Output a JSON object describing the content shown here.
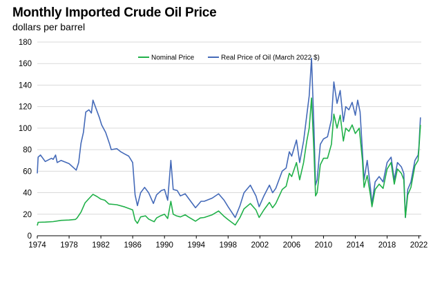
{
  "chart_data": {
    "type": "line",
    "title": "Monthly Imported Crude Oil Price",
    "subtitle": "dollars per barrel",
    "xlabel": "",
    "ylabel": "",
    "xlim": [
      1974,
      2022.3
    ],
    "ylim": [
      0,
      180
    ],
    "y_ticks": [
      0,
      20,
      40,
      60,
      80,
      100,
      120,
      140,
      160,
      180
    ],
    "x_ticks": [
      1974,
      1978,
      1982,
      1986,
      1990,
      1994,
      1998,
      2002,
      2006,
      2010,
      2014,
      2018,
      2022
    ],
    "grid": "horizontal",
    "legend_position": "top-center",
    "series": [
      {
        "name": "Nominal Price",
        "color": "#1fb048",
        "points": [
          [
            1974.0,
            9.5
          ],
          [
            1974.1,
            12.5
          ],
          [
            1975.0,
            12.7
          ],
          [
            1976.0,
            13.1
          ],
          [
            1977.0,
            14.3
          ],
          [
            1978.0,
            14.6
          ],
          [
            1978.8,
            15.2
          ],
          [
            1979.0,
            16.5
          ],
          [
            1979.5,
            22.0
          ],
          [
            1980.0,
            30.5
          ],
          [
            1980.5,
            34.5
          ],
          [
            1981.0,
            38.5
          ],
          [
            1981.5,
            36.5
          ],
          [
            1982.0,
            34.0
          ],
          [
            1982.5,
            33.0
          ],
          [
            1983.0,
            29.5
          ],
          [
            1984.0,
            28.8
          ],
          [
            1985.0,
            26.8
          ],
          [
            1986.0,
            24.0
          ],
          [
            1986.3,
            14.5
          ],
          [
            1986.6,
            11.5
          ],
          [
            1987.0,
            17.5
          ],
          [
            1987.6,
            18.5
          ],
          [
            1988.0,
            15.5
          ],
          [
            1988.7,
            13.0
          ],
          [
            1989.0,
            16.5
          ],
          [
            1989.5,
            18.5
          ],
          [
            1990.0,
            20.0
          ],
          [
            1990.4,
            16.0
          ],
          [
            1990.8,
            32.0
          ],
          [
            1991.1,
            20.0
          ],
          [
            1991.5,
            18.5
          ],
          [
            1992.0,
            17.5
          ],
          [
            1992.6,
            19.5
          ],
          [
            1993.0,
            17.5
          ],
          [
            1993.9,
            13.5
          ],
          [
            1994.5,
            16.5
          ],
          [
            1995.0,
            17.0
          ],
          [
            1996.0,
            19.5
          ],
          [
            1996.8,
            23.0
          ],
          [
            1997.5,
            18.0
          ],
          [
            1998.0,
            15.0
          ],
          [
            1998.9,
            10.0
          ],
          [
            1999.5,
            17.0
          ],
          [
            2000.0,
            25.0
          ],
          [
            2000.8,
            30.0
          ],
          [
            2001.5,
            24.0
          ],
          [
            2001.9,
            17.0
          ],
          [
            2002.5,
            24.0
          ],
          [
            2003.2,
            31.0
          ],
          [
            2003.6,
            26.0
          ],
          [
            2004.0,
            30.0
          ],
          [
            2004.8,
            43.0
          ],
          [
            2005.3,
            46.0
          ],
          [
            2005.7,
            58.0
          ],
          [
            2006.0,
            55.0
          ],
          [
            2006.6,
            68.0
          ],
          [
            2007.0,
            52.0
          ],
          [
            2007.5,
            68.0
          ],
          [
            2007.9,
            88.0
          ],
          [
            2008.2,
            100.0
          ],
          [
            2008.5,
            128.0
          ],
          [
            2008.8,
            78.0
          ],
          [
            2009.0,
            37.0
          ],
          [
            2009.2,
            40.0
          ],
          [
            2009.6,
            66.0
          ],
          [
            2010.0,
            72.0
          ],
          [
            2010.5,
            72.0
          ],
          [
            2011.0,
            85.0
          ],
          [
            2011.3,
            113.0
          ],
          [
            2011.7,
            100.0
          ],
          [
            2012.1,
            112.0
          ],
          [
            2012.5,
            88.0
          ],
          [
            2012.8,
            100.0
          ],
          [
            2013.2,
            97.0
          ],
          [
            2013.6,
            103.0
          ],
          [
            2014.0,
            95.0
          ],
          [
            2014.5,
            100.0
          ],
          [
            2014.9,
            70.0
          ],
          [
            2015.1,
            45.0
          ],
          [
            2015.5,
            56.0
          ],
          [
            2015.9,
            38.0
          ],
          [
            2016.1,
            27.0
          ],
          [
            2016.5,
            43.0
          ],
          [
            2017.0,
            48.0
          ],
          [
            2017.5,
            44.0
          ],
          [
            2018.0,
            62.0
          ],
          [
            2018.5,
            68.0
          ],
          [
            2018.9,
            48.0
          ],
          [
            2019.3,
            62.0
          ],
          [
            2019.8,
            58.0
          ],
          [
            2020.1,
            52.0
          ],
          [
            2020.3,
            17.0
          ],
          [
            2020.6,
            38.0
          ],
          [
            2021.0,
            45.0
          ],
          [
            2021.5,
            65.0
          ],
          [
            2021.9,
            70.0
          ],
          [
            2022.0,
            80.0
          ],
          [
            2022.2,
            103.0
          ]
        ]
      },
      {
        "name": "Real Price of Oil  (March 2022 $)",
        "color": "#4369b8",
        "points": [
          [
            1974.0,
            58.0
          ],
          [
            1974.1,
            73.0
          ],
          [
            1974.4,
            75.0
          ],
          [
            1975.0,
            69.0
          ],
          [
            1975.8,
            72.0
          ],
          [
            1976.0,
            71.0
          ],
          [
            1976.3,
            75.0
          ],
          [
            1976.5,
            68.0
          ],
          [
            1977.0,
            70.0
          ],
          [
            1978.0,
            67.0
          ],
          [
            1978.9,
            61.0
          ],
          [
            1979.2,
            68.0
          ],
          [
            1979.5,
            86.0
          ],
          [
            1979.8,
            96.0
          ],
          [
            1980.1,
            115.0
          ],
          [
            1980.5,
            117.0
          ],
          [
            1980.8,
            114.0
          ],
          [
            1981.0,
            126.0
          ],
          [
            1981.4,
            118.0
          ],
          [
            1981.8,
            110.0
          ],
          [
            1982.1,
            103.0
          ],
          [
            1982.6,
            96.0
          ],
          [
            1983.1,
            85.0
          ],
          [
            1983.3,
            80.0
          ],
          [
            1984.0,
            81.0
          ],
          [
            1984.5,
            78.0
          ],
          [
            1985.0,
            76.0
          ],
          [
            1985.5,
            74.0
          ],
          [
            1986.0,
            68.0
          ],
          [
            1986.3,
            38.0
          ],
          [
            1986.6,
            28.0
          ],
          [
            1987.0,
            40.0
          ],
          [
            1987.5,
            45.0
          ],
          [
            1988.0,
            40.0
          ],
          [
            1988.6,
            30.0
          ],
          [
            1989.0,
            38.0
          ],
          [
            1989.6,
            42.0
          ],
          [
            1990.0,
            43.0
          ],
          [
            1990.4,
            33.0
          ],
          [
            1990.8,
            70.0
          ],
          [
            1991.1,
            43.0
          ],
          [
            1991.6,
            42.0
          ],
          [
            1992.0,
            37.0
          ],
          [
            1992.6,
            39.0
          ],
          [
            1993.0,
            35.0
          ],
          [
            1993.9,
            26.0
          ],
          [
            1994.6,
            32.0
          ],
          [
            1995.0,
            32.0
          ],
          [
            1996.0,
            35.0
          ],
          [
            1996.8,
            39.0
          ],
          [
            1997.5,
            33.0
          ],
          [
            1998.0,
            27.0
          ],
          [
            1998.9,
            17.0
          ],
          [
            1999.5,
            28.0
          ],
          [
            2000.0,
            40.0
          ],
          [
            2000.8,
            47.0
          ],
          [
            2001.5,
            37.0
          ],
          [
            2001.9,
            27.0
          ],
          [
            2002.5,
            37.0
          ],
          [
            2003.2,
            47.0
          ],
          [
            2003.6,
            40.0
          ],
          [
            2004.0,
            44.0
          ],
          [
            2004.8,
            60.0
          ],
          [
            2005.3,
            63.0
          ],
          [
            2005.7,
            78.0
          ],
          [
            2006.0,
            74.0
          ],
          [
            2006.6,
            89.0
          ],
          [
            2007.0,
            68.0
          ],
          [
            2007.5,
            88.0
          ],
          [
            2007.9,
            112.0
          ],
          [
            2008.2,
            130.0
          ],
          [
            2008.5,
            165.0
          ],
          [
            2008.8,
            100.0
          ],
          [
            2009.0,
            47.0
          ],
          [
            2009.2,
            52.0
          ],
          [
            2009.6,
            85.0
          ],
          [
            2010.0,
            90.0
          ],
          [
            2010.5,
            92.0
          ],
          [
            2011.0,
            108.0
          ],
          [
            2011.3,
            143.0
          ],
          [
            2011.7,
            123.0
          ],
          [
            2012.1,
            135.0
          ],
          [
            2012.5,
            106.0
          ],
          [
            2012.8,
            120.0
          ],
          [
            2013.2,
            117.0
          ],
          [
            2013.6,
            124.0
          ],
          [
            2014.0,
            112.0
          ],
          [
            2014.3,
            126.0
          ],
          [
            2014.6,
            115.0
          ],
          [
            2014.9,
            78.0
          ],
          [
            2015.1,
            52.0
          ],
          [
            2015.5,
            70.0
          ],
          [
            2015.9,
            45.0
          ],
          [
            2016.1,
            30.0
          ],
          [
            2016.5,
            50.0
          ],
          [
            2017.0,
            55.0
          ],
          [
            2017.5,
            50.0
          ],
          [
            2018.0,
            68.0
          ],
          [
            2018.5,
            73.0
          ],
          [
            2018.9,
            52.0
          ],
          [
            2019.3,
            68.0
          ],
          [
            2019.8,
            64.0
          ],
          [
            2020.1,
            58.0
          ],
          [
            2020.3,
            17.0
          ],
          [
            2020.6,
            43.0
          ],
          [
            2021.0,
            50.0
          ],
          [
            2021.5,
            70.0
          ],
          [
            2021.9,
            75.0
          ],
          [
            2022.0,
            82.0
          ],
          [
            2022.2,
            110.0
          ]
        ]
      }
    ]
  }
}
